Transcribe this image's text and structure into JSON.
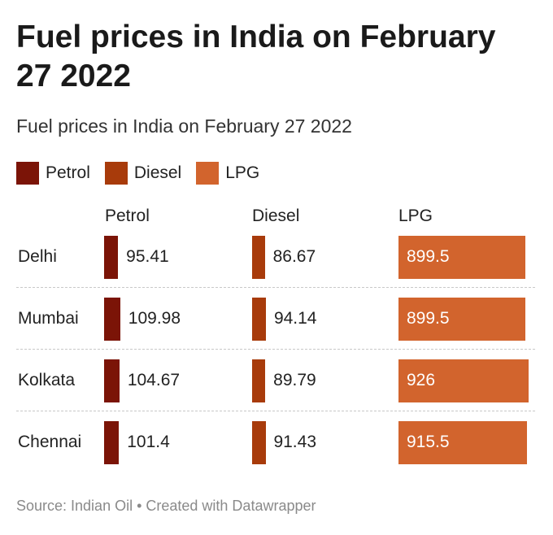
{
  "title": "Fuel prices in India on February 27 2022",
  "subtitle": "Fuel prices in India on February 27 2022",
  "legend": [
    {
      "label": "Petrol",
      "color": "#7b1407"
    },
    {
      "label": "Diesel",
      "color": "#a83b0b"
    },
    {
      "label": "LPG",
      "color": "#d2642d"
    }
  ],
  "source": "Source: Indian Oil • Created with Datawrapper",
  "chart_data": {
    "type": "bar",
    "title": "Fuel prices in India on February 27 2022",
    "subtitle": "Fuel prices in India on February 27 2022",
    "categories": [
      "Delhi",
      "Mumbai",
      "Kolkata",
      "Chennai"
    ],
    "series": [
      {
        "name": "Petrol",
        "color": "#7b1407",
        "values": [
          95.41,
          109.98,
          104.67,
          101.4
        ]
      },
      {
        "name": "Diesel",
        "color": "#a83b0b",
        "values": [
          86.67,
          94.14,
          89.79,
          91.43
        ]
      },
      {
        "name": "LPG",
        "color": "#d2642d",
        "values": [
          899.5,
          899.5,
          926,
          915.5
        ]
      }
    ],
    "source": "Source: Indian Oil • Created with Datawrapper"
  }
}
